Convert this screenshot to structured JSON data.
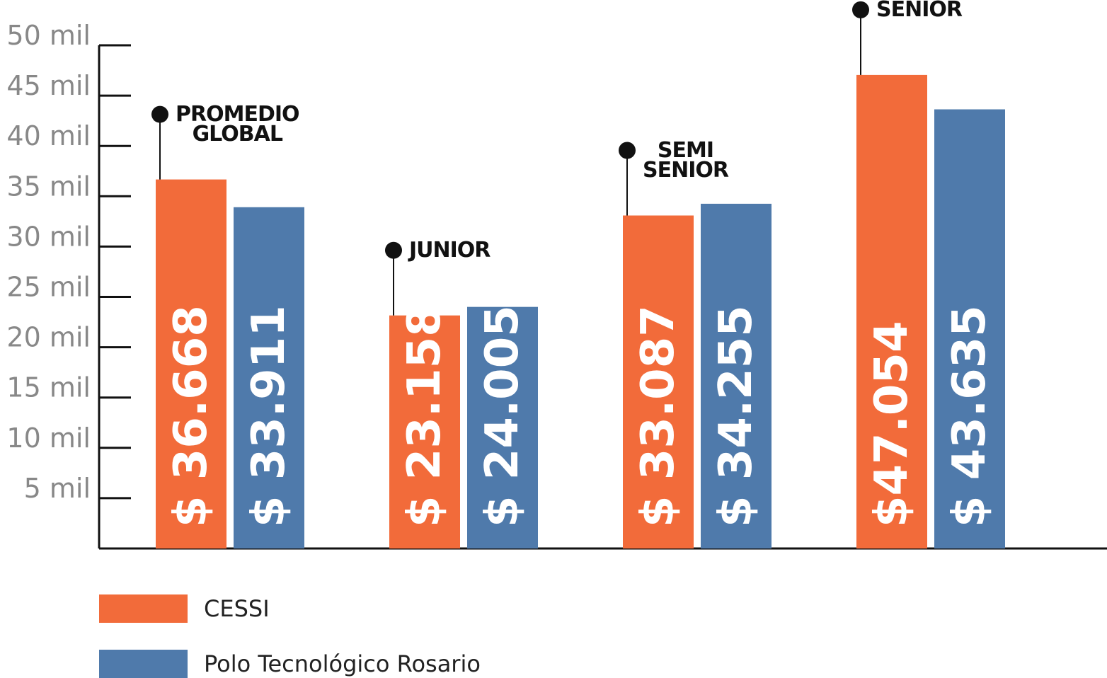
{
  "chart_data": {
    "type": "bar",
    "categories": [
      "PROMEDIO GLOBAL",
      "JUNIOR",
      "SEMI SENIOR",
      "SENIOR"
    ],
    "series": [
      {
        "name": "CESSI",
        "color": "#f26b3a",
        "values": [
          36668,
          23158,
          33087,
          47054
        ],
        "value_labels": [
          "$ 36.668",
          "$ 23.158",
          "$ 33.087",
          "$47.054"
        ]
      },
      {
        "name": "Polo Tecnológico Rosario",
        "color": "#4f7aab",
        "values": [
          33911,
          24005,
          34255,
          43635
        ],
        "value_labels": [
          "$ 33.911",
          "$ 24.005",
          "$ 34.255",
          "$ 43.635"
        ]
      }
    ],
    "ylim": [
      0,
      50000
    ],
    "yticks": [
      {
        "value": 5000,
        "label": "5 mil"
      },
      {
        "value": 10000,
        "label": "10 mil"
      },
      {
        "value": 15000,
        "label": "15 mil"
      },
      {
        "value": 20000,
        "label": "20 mil"
      },
      {
        "value": 25000,
        "label": "25 mil"
      },
      {
        "value": 30000,
        "label": "30 mil"
      },
      {
        "value": 35000,
        "label": "35 mil"
      },
      {
        "value": 40000,
        "label": "40 mil"
      },
      {
        "value": 45000,
        "label": "45 mil"
      },
      {
        "value": 50000,
        "label": "50 mil"
      }
    ],
    "legend": "bottom-left"
  }
}
